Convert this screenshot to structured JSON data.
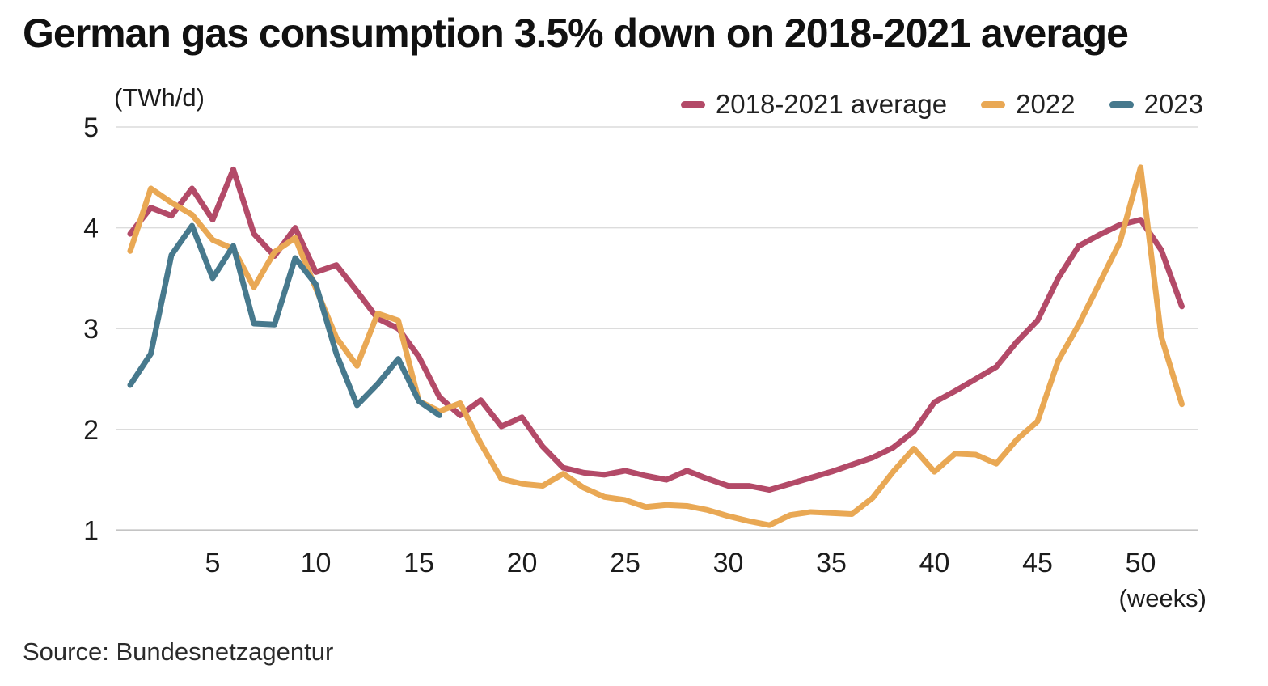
{
  "title": "German gas consumption 3.5% down on 2018-2021 average",
  "source": "Source: Bundesnetzagentur",
  "y_axis_unit": "(TWh/d)",
  "x_axis_unit": "(weeks)",
  "legend": [
    {
      "label": "2018-2021 average",
      "color": "#b34a68"
    },
    {
      "label": "2022",
      "color": "#e9a854"
    },
    {
      "label": "2023",
      "color": "#47798d"
    }
  ],
  "colors": {
    "avg_series": "#b34a68",
    "series_2022": "#e9a854",
    "series_2023": "#47798d",
    "gridline": "#dcdcdc",
    "baseline": "#c4c4c4",
    "text": "#1c1c1c",
    "title": "#111111"
  },
  "chart_data": {
    "type": "line",
    "title": "German gas consumption 3.5% down on 2018-2021 average",
    "xlabel": "(weeks)",
    "ylabel": "(TWh/d)",
    "x_ticks": [
      5,
      10,
      15,
      20,
      25,
      30,
      35,
      40,
      45,
      50
    ],
    "y_ticks": [
      1,
      2,
      3,
      4,
      5
    ],
    "xlim": [
      1,
      52
    ],
    "ylim": [
      1,
      5
    ],
    "grid": "horizontal",
    "legend_position": "top-right",
    "x_unit": "week of year",
    "series": [
      {
        "name": "2018-2021 average",
        "color": "#b34a68",
        "values": [
          3.94,
          4.2,
          4.12,
          4.39,
          4.08,
          4.58,
          3.94,
          3.72,
          4.0,
          3.56,
          3.63,
          3.37,
          3.1,
          3.0,
          2.72,
          2.32,
          2.14,
          2.29,
          2.03,
          2.12,
          1.83,
          1.62,
          1.57,
          1.55,
          1.59,
          1.54,
          1.5,
          1.59,
          1.51,
          1.44,
          1.44,
          1.4,
          1.46,
          1.52,
          1.58,
          1.65,
          1.72,
          1.82,
          1.98,
          2.27,
          2.38,
          2.5,
          2.62,
          2.87,
          3.08,
          3.5,
          3.82,
          3.93,
          4.03,
          4.08,
          3.78,
          3.22
        ]
      },
      {
        "name": "2022",
        "color": "#e9a854",
        "values": [
          3.77,
          4.39,
          4.25,
          4.13,
          3.88,
          3.79,
          3.41,
          3.76,
          3.9,
          3.4,
          2.91,
          2.63,
          3.15,
          3.08,
          2.28,
          2.18,
          2.26,
          1.86,
          1.51,
          1.46,
          1.44,
          1.56,
          1.42,
          1.33,
          1.3,
          1.23,
          1.25,
          1.24,
          1.2,
          1.14,
          1.09,
          1.05,
          1.15,
          1.18,
          1.17,
          1.16,
          1.32,
          1.58,
          1.81,
          1.58,
          1.76,
          1.75,
          1.66,
          1.9,
          2.08,
          2.68,
          3.04,
          3.45,
          3.86,
          4.6,
          2.92,
          2.25
        ]
      },
      {
        "name": "2023",
        "color": "#47798d",
        "values": [
          2.44,
          2.75,
          3.73,
          4.02,
          3.5,
          3.82,
          3.05,
          3.04,
          3.7,
          3.44,
          2.75,
          2.24,
          2.45,
          2.7,
          2.28,
          2.14
        ]
      }
    ]
  }
}
